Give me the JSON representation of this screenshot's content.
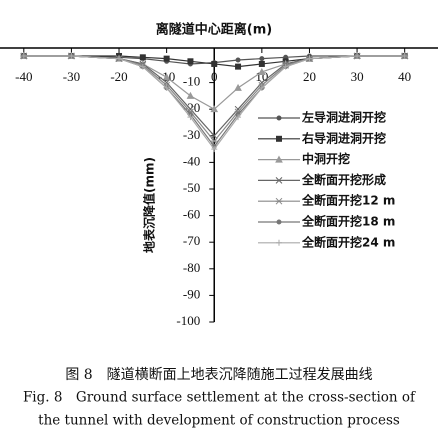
{
  "chart_data": {
    "type": "line",
    "xlabel": "离隧道中心距离(m)",
    "ylabel": "地表沉降值(mm)",
    "x": [
      -40,
      -30,
      -20,
      -15,
      -10,
      -5,
      0,
      5,
      10,
      15,
      20,
      30,
      40
    ],
    "xlim": [
      -45,
      47
    ],
    "xticks": [
      -40,
      -30,
      -20,
      -10,
      0,
      10,
      20,
      30,
      40
    ],
    "ylim": [
      -100,
      3
    ],
    "yticks": [
      -10,
      -20,
      -30,
      -40,
      -50,
      -60,
      -70,
      -80,
      -90,
      -100
    ],
    "grid": false,
    "series": [
      {
        "name": "左导洞进洞开挖",
        "color": "#555555",
        "marker": "circle",
        "values": [
          0,
          0,
          -0.5,
          -1,
          -2,
          -3,
          -2.5,
          -1.5,
          -1,
          -0.5,
          0,
          0,
          0
        ]
      },
      {
        "name": "右导洞进洞开挖",
        "color": "#333333",
        "marker": "square",
        "values": [
          0,
          0,
          0,
          -0.5,
          -1,
          -2,
          -3,
          -4,
          -3,
          -2,
          -1,
          0,
          0
        ]
      },
      {
        "name": "中洞开挖",
        "color": "#999999",
        "marker": "triangle",
        "values": [
          0,
          0,
          -1,
          -3,
          -8,
          -15,
          -20,
          -12,
          -6,
          -3,
          -1,
          0,
          0
        ]
      },
      {
        "name": "全断面开挖形成",
        "color": "#666666",
        "marker": "cross",
        "values": [
          0,
          0,
          -1,
          -3,
          -10,
          -20,
          -30,
          -20,
          -10,
          -3,
          -1,
          0,
          0
        ]
      },
      {
        "name": "全断面开挖12 m",
        "color": "#888888",
        "marker": "star",
        "values": [
          0,
          0,
          -1,
          -3.5,
          -11,
          -21,
          -32,
          -21,
          -11,
          -3.5,
          -1,
          0,
          0
        ]
      },
      {
        "name": "全断面开挖18 m",
        "color": "#777777",
        "marker": "circle",
        "values": [
          0,
          0,
          -1,
          -4,
          -12,
          -22,
          -34,
          -22,
          -12,
          -4,
          -1,
          0,
          0
        ]
      },
      {
        "name": "全断面开挖24 m",
        "color": "#aaaaaa",
        "marker": "plus",
        "values": [
          0,
          0,
          -1,
          -4,
          -12,
          -23,
          -35,
          -23,
          -12,
          -4,
          -1,
          0,
          0
        ]
      }
    ]
  },
  "caption": {
    "cn": "图 8　隧道横断面上地表沉降随施工过程发展曲线",
    "en1": "Fig. 8　Ground surface settlement at the cross-section of",
    "en2": "the tunnel with development of construction process"
  }
}
